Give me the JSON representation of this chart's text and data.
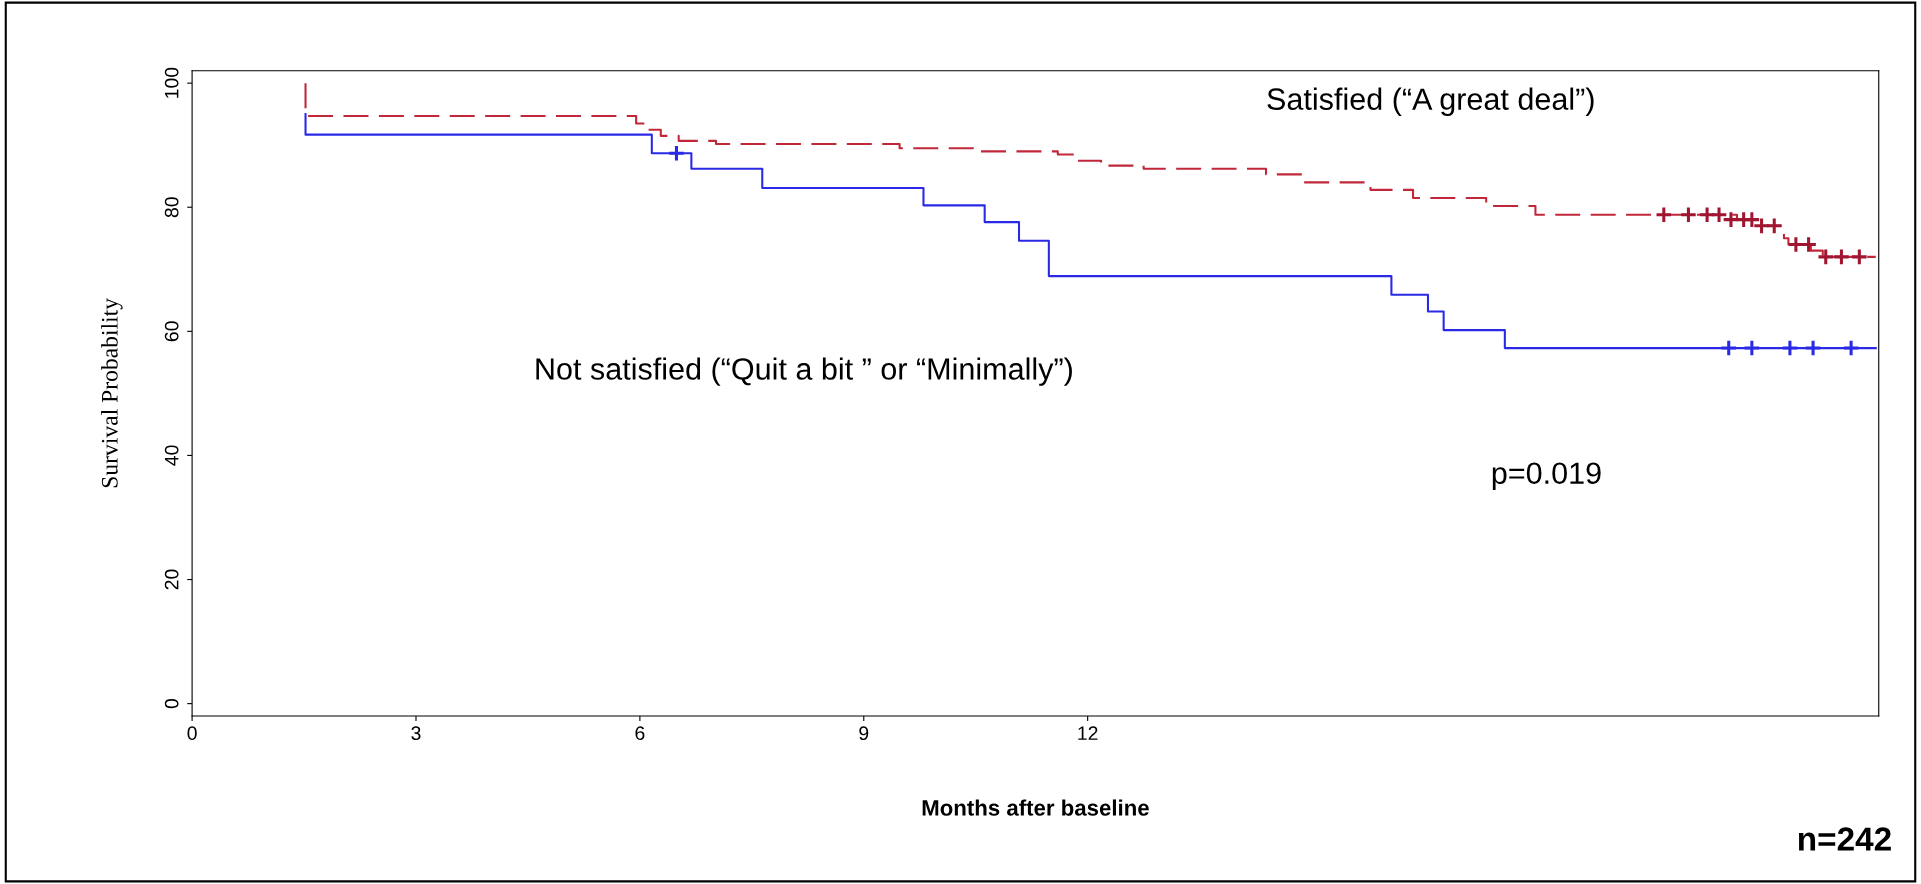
{
  "chart_data": {
    "type": "step",
    "xlabel": "Months after baseline",
    "ylabel": "Survival Probability",
    "xlim": [
      0,
      22.6
    ],
    "xticks": [
      0,
      3,
      6,
      9,
      12
    ],
    "ylim": [
      -2,
      102
    ],
    "yticks": [
      0,
      20,
      40,
      60,
      80,
      100
    ],
    "grid": false,
    "legend": false,
    "line_style": "solid",
    "series": [
      {
        "name": "Satisfied (“A great deal”)",
        "color": "#c0283a",
        "line_style": "dashed",
        "x": [
          1.52,
          1.52,
          5.95,
          6.08,
          6.28,
          6.52,
          7.02,
          9.48,
          10.54,
          11.6,
          11.85,
          12.18,
          12.75,
          14.39,
          14.89,
          15.79,
          16.36,
          17.34,
          18.0,
          20.7,
          21.03,
          21.33,
          21.39,
          21.69,
          21.85,
          22.56
        ],
        "values": [
          100,
          94.7,
          93.5,
          92.5,
          91.5,
          90.7,
          90.2,
          89.5,
          89,
          88.5,
          87.5,
          86.7,
          86.2,
          85.3,
          84,
          82.8,
          81.5,
          80.2,
          78.8,
          78,
          77,
          75,
          74,
          73,
          72,
          72
        ]
      },
      {
        "name": "Not satisfied (“Quit a bit ” or “Minimally”)",
        "color": "#2a2ae6",
        "x": [
          1.52,
          1.52,
          6.16,
          6.69,
          7.64,
          9.8,
          10.62,
          11.08,
          11.48,
          16.07,
          16.56,
          16.77,
          17.59,
          22.56
        ],
        "values": [
          95,
          91.7,
          88.7,
          86.2,
          83.1,
          80.3,
          77.6,
          74.6,
          68.9,
          65.9,
          63.2,
          60.2,
          57.3,
          57.3
        ]
      },
      {
        "type": "scatter",
        "marker": "cross",
        "color": "#a01630",
        "x": [
          19.72,
          20.05,
          20.3,
          20.46,
          20.62,
          20.79,
          20.9,
          21.03,
          21.2,
          21.49,
          21.66,
          21.89,
          22.1,
          22.34
        ],
        "values": [
          78.8,
          78.8,
          78.8,
          78.8,
          78,
          78,
          78,
          77,
          77,
          74,
          74,
          72,
          72,
          72
        ]
      },
      {
        "type": "scatter",
        "marker": "cross",
        "color": "#2a2ae6",
        "x": [
          6.49,
          20.59,
          20.9,
          21.41,
          21.72,
          22.23
        ],
        "values": [
          88.7,
          57.3,
          57.3,
          57.3,
          57.3,
          57.3
        ]
      }
    ],
    "annotations": [
      "p=0.019",
      "n=242"
    ]
  }
}
